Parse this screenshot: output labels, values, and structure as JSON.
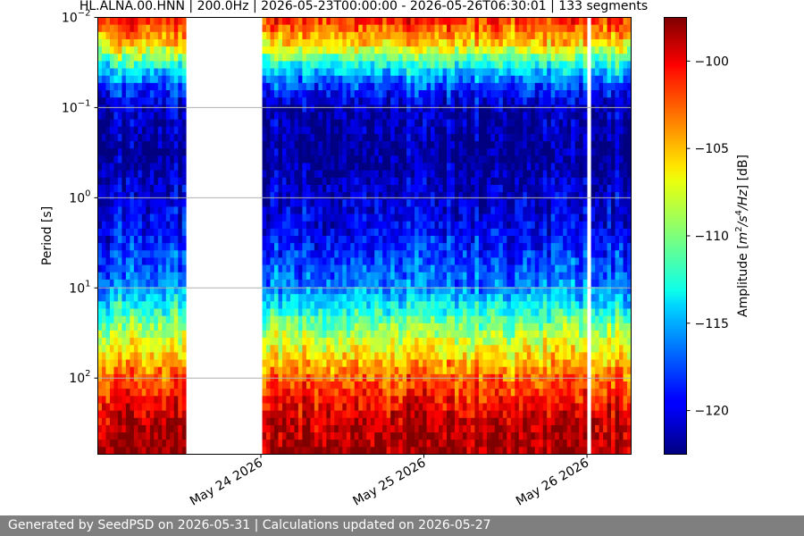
{
  "chart_data": {
    "type": "heatmap",
    "title": "HL.ALNA.00.HNN | 200.0Hz | 2026-05-23T00:00:00 - 2026-05-26T06:30:01 | 133 segments",
    "ylabel": "Period [s]",
    "colorbar_label": "Amplitude [m²/s⁴/Hz] [dB]",
    "y_scale": "log",
    "y_inverted": true,
    "ylim": [
      0.01,
      700
    ],
    "y_ticks": [
      {
        "value": 0.01,
        "base": "10",
        "exp": "−2"
      },
      {
        "value": 0.1,
        "base": "10",
        "exp": "−1"
      },
      {
        "value": 1,
        "base": "10",
        "exp": "0"
      },
      {
        "value": 10,
        "base": "10",
        "exp": "1"
      },
      {
        "value": 100,
        "base": "10",
        "exp": "2"
      }
    ],
    "grid": "horizontal at major y ticks",
    "x_range": [
      "2026-05-23T00:00:00",
      "2026-05-26T06:30:01"
    ],
    "x_ticks": [
      {
        "date": "2026-05-24T00:00:00",
        "label": "May 24 2026"
      },
      {
        "date": "2026-05-25T00:00:00",
        "label": "May 25 2026"
      },
      {
        "date": "2026-05-26T00:00:00",
        "label": "May 26 2026"
      }
    ],
    "data_gaps": [
      {
        "start": "2026-05-23T12:49:00",
        "end": "2026-05-24T00:00:00"
      },
      {
        "start": "2026-05-24T23:50:00",
        "end": "2026-05-25T00:05:00"
      },
      {
        "start": "2026-05-25T23:50:00",
        "end": "2026-05-26T00:20:00"
      }
    ],
    "colorbar": {
      "colormap": "jet",
      "range": [
        -122.5,
        -97.5
      ],
      "ticks": [
        -100,
        -105,
        -110,
        -115,
        -120
      ],
      "tick_labels": [
        "−100",
        "−105",
        "−110",
        "−115",
        "−120"
      ]
    },
    "amplitude_profile_db": [
      {
        "period": 0.01,
        "value": -101
      },
      {
        "period": 0.02,
        "value": -106
      },
      {
        "period": 0.035,
        "value": -113
      },
      {
        "period": 0.06,
        "value": -118
      },
      {
        "period": 0.1,
        "value": -121
      },
      {
        "period": 0.3,
        "value": -122
      },
      {
        "period": 1,
        "value": -120.5
      },
      {
        "period": 3,
        "value": -119
      },
      {
        "period": 10,
        "value": -116
      },
      {
        "period": 30,
        "value": -109
      },
      {
        "period": 100,
        "value": -103
      },
      {
        "period": 300,
        "value": -99
      },
      {
        "period": 700,
        "value": -98
      }
    ]
  },
  "footer": {
    "text": "Generated by SeedPSD on 2026-05-31 | Calculations updated on 2026-05-27"
  }
}
